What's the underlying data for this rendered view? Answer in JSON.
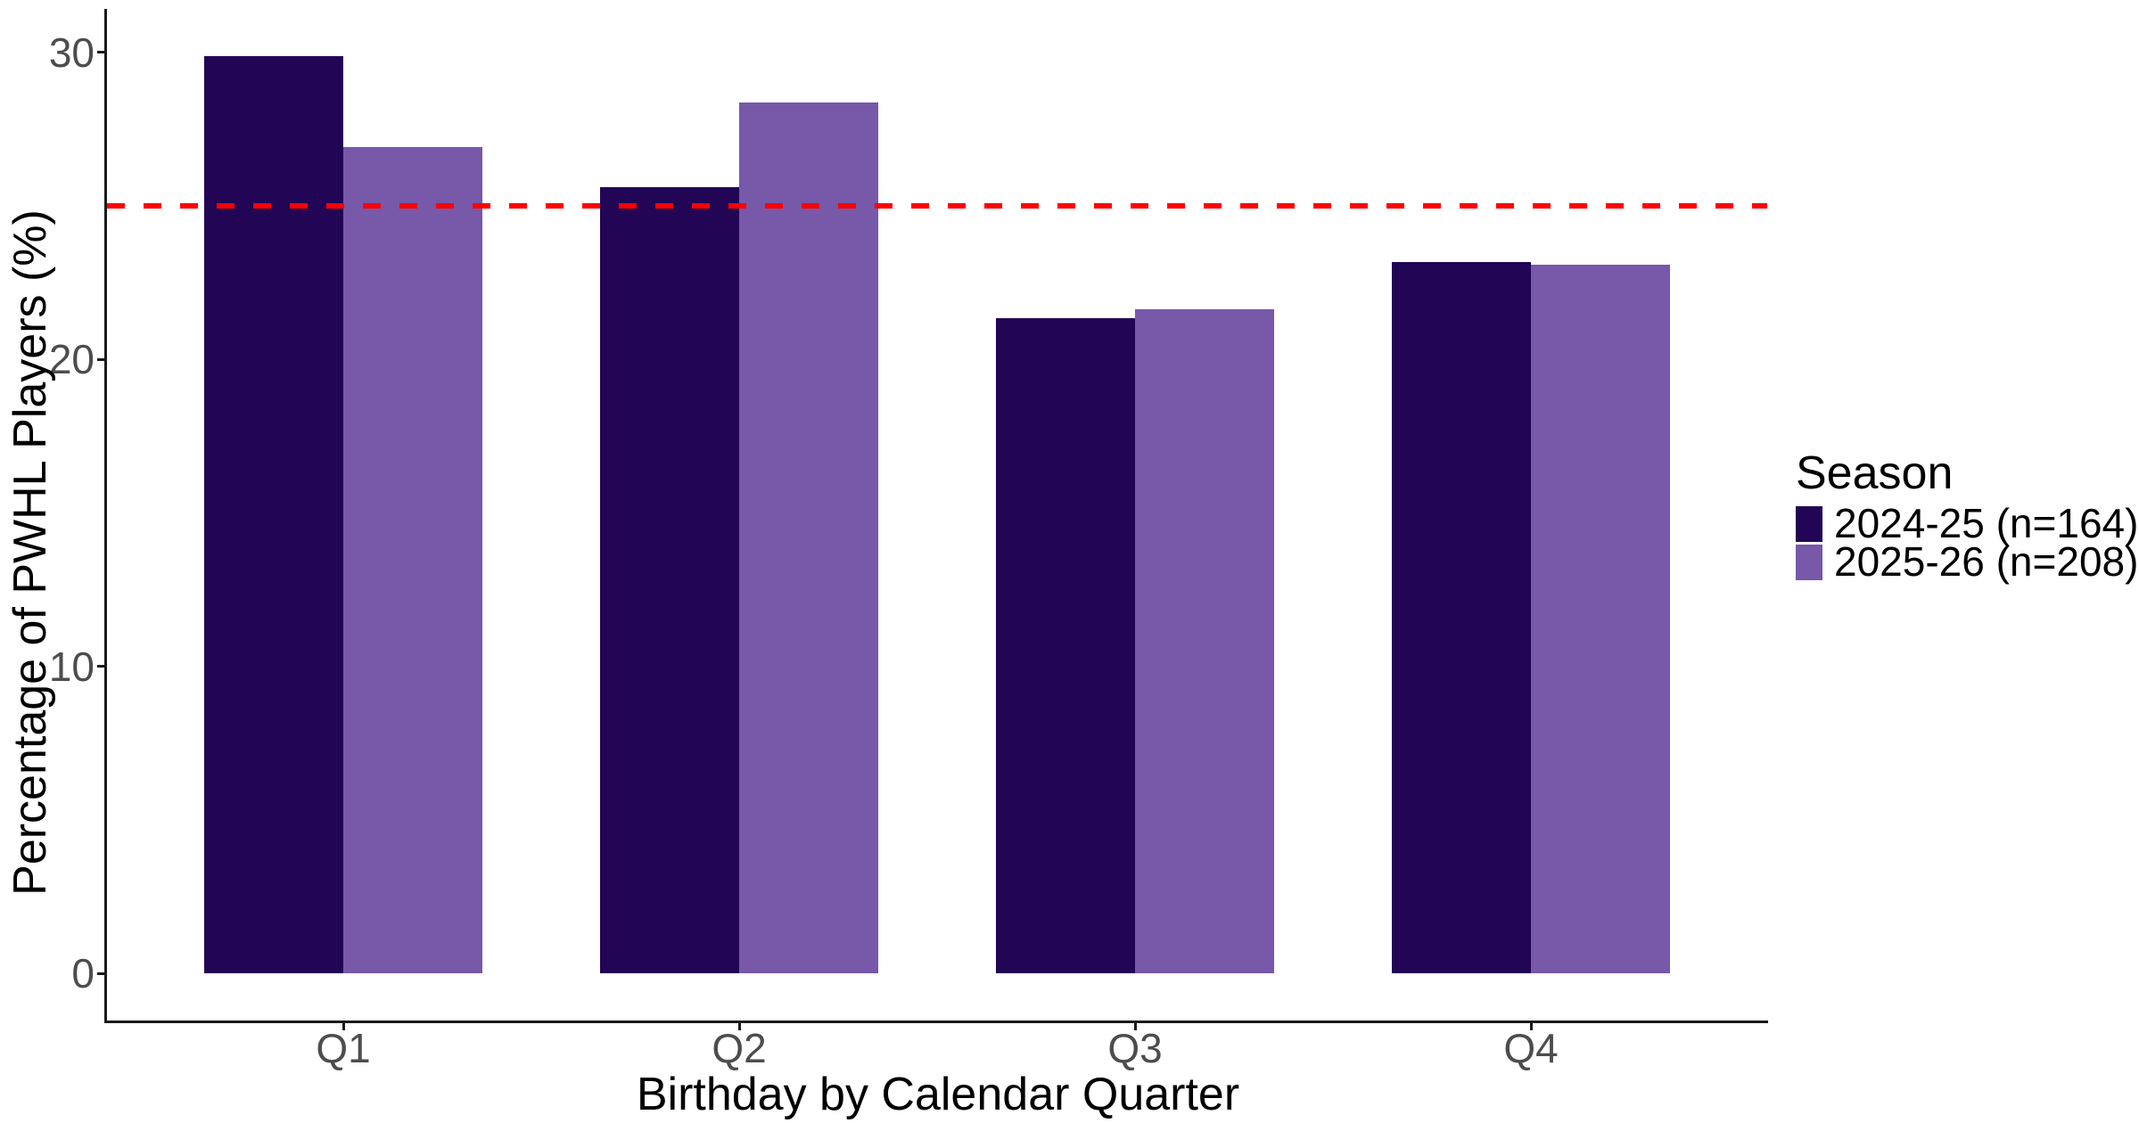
{
  "chart_data": {
    "type": "bar",
    "title": "",
    "xlabel": "Birthday by Calendar Quarter",
    "ylabel": "Percentage of PWHL Players (%)",
    "categories": [
      "Q1",
      "Q2",
      "Q3",
      "Q4"
    ],
    "series": [
      {
        "name": "2024-25 (n=164)",
        "color": "#220555",
        "values": [
          29.88,
          25.61,
          21.34,
          23.17
        ]
      },
      {
        "name": "2025-26 (n=208)",
        "color": "#7758A9",
        "values": [
          26.92,
          28.37,
          21.63,
          23.08
        ]
      }
    ],
    "ylim": [
      0,
      31.4
    ],
    "yticks": [
      0,
      10,
      20,
      30
    ],
    "reference_line": {
      "value": 25,
      "color": "#FF0000",
      "style": "dashed"
    },
    "legend": {
      "title": "Season",
      "position": "right"
    },
    "grid": false,
    "axis_color": "#1a1a1a",
    "tick_label_color": "#4D4D4D",
    "background": "#ffffff"
  }
}
